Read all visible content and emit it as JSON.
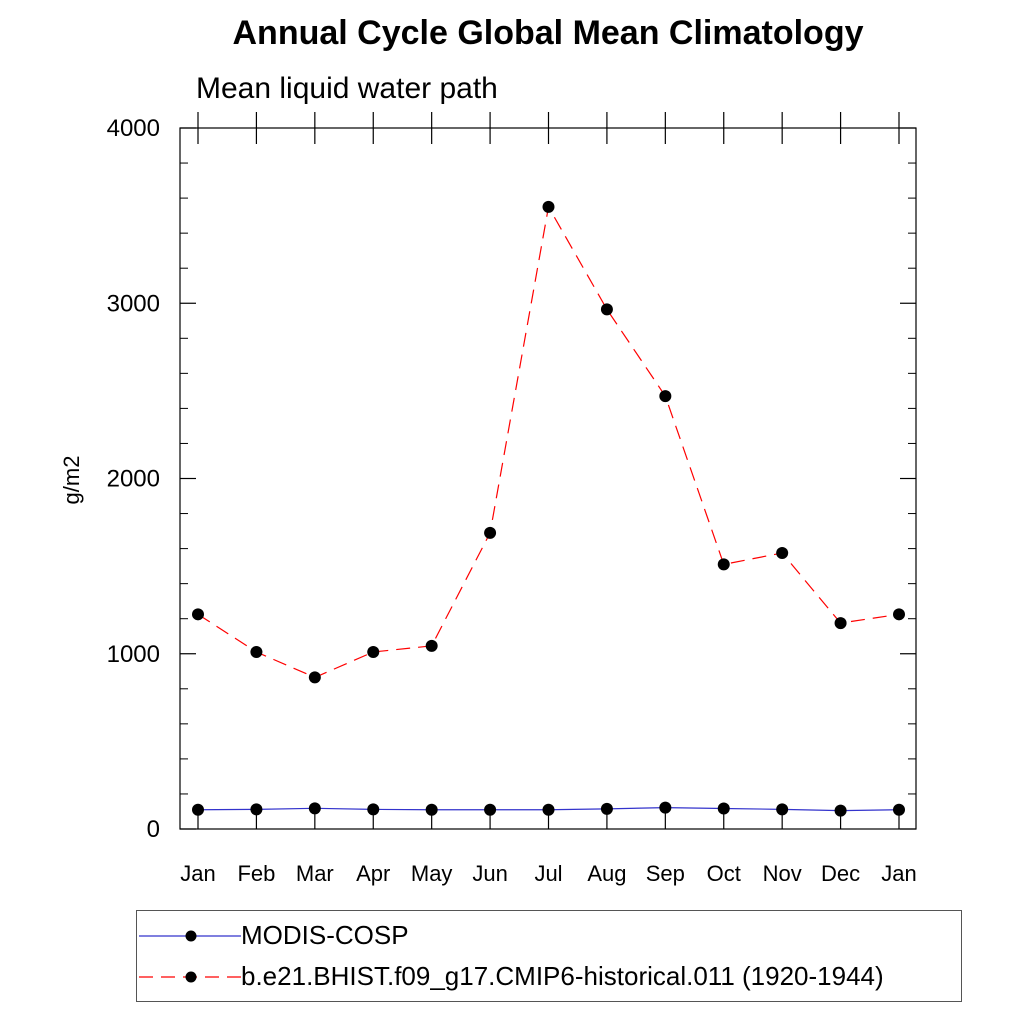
{
  "chart_data": {
    "type": "line",
    "title": "Annual Cycle Global Mean Climatology",
    "subtitle": "Mean liquid water path",
    "ylabel": "g/m2",
    "xlabel": "",
    "categories": [
      "Jan",
      "Feb",
      "Mar",
      "Apr",
      "May",
      "Jun",
      "Jul",
      "Aug",
      "Sep",
      "Oct",
      "Nov",
      "Dec",
      "Jan"
    ],
    "ylim": [
      0,
      4000
    ],
    "yticks": [
      0,
      1000,
      2000,
      3000,
      4000
    ],
    "grid": false,
    "legend_position": "bottom",
    "series": [
      {
        "name": "MODIS-COSP",
        "color": "#3333cc",
        "line_style": "solid",
        "marker": "filled-circle",
        "values": [
          110,
          112,
          118,
          112,
          110,
          110,
          110,
          115,
          122,
          117,
          112,
          105,
          110
        ]
      },
      {
        "name": "b.e21.BHIST.f09_g17.CMIP6-historical.011 (1920-1944)",
        "color": "#ff0000",
        "line_style": "dashed",
        "marker": "filled-circle",
        "values": [
          1225,
          1010,
          865,
          1010,
          1045,
          1690,
          3550,
          2965,
          2470,
          1510,
          1575,
          1175,
          1225
        ]
      }
    ]
  }
}
